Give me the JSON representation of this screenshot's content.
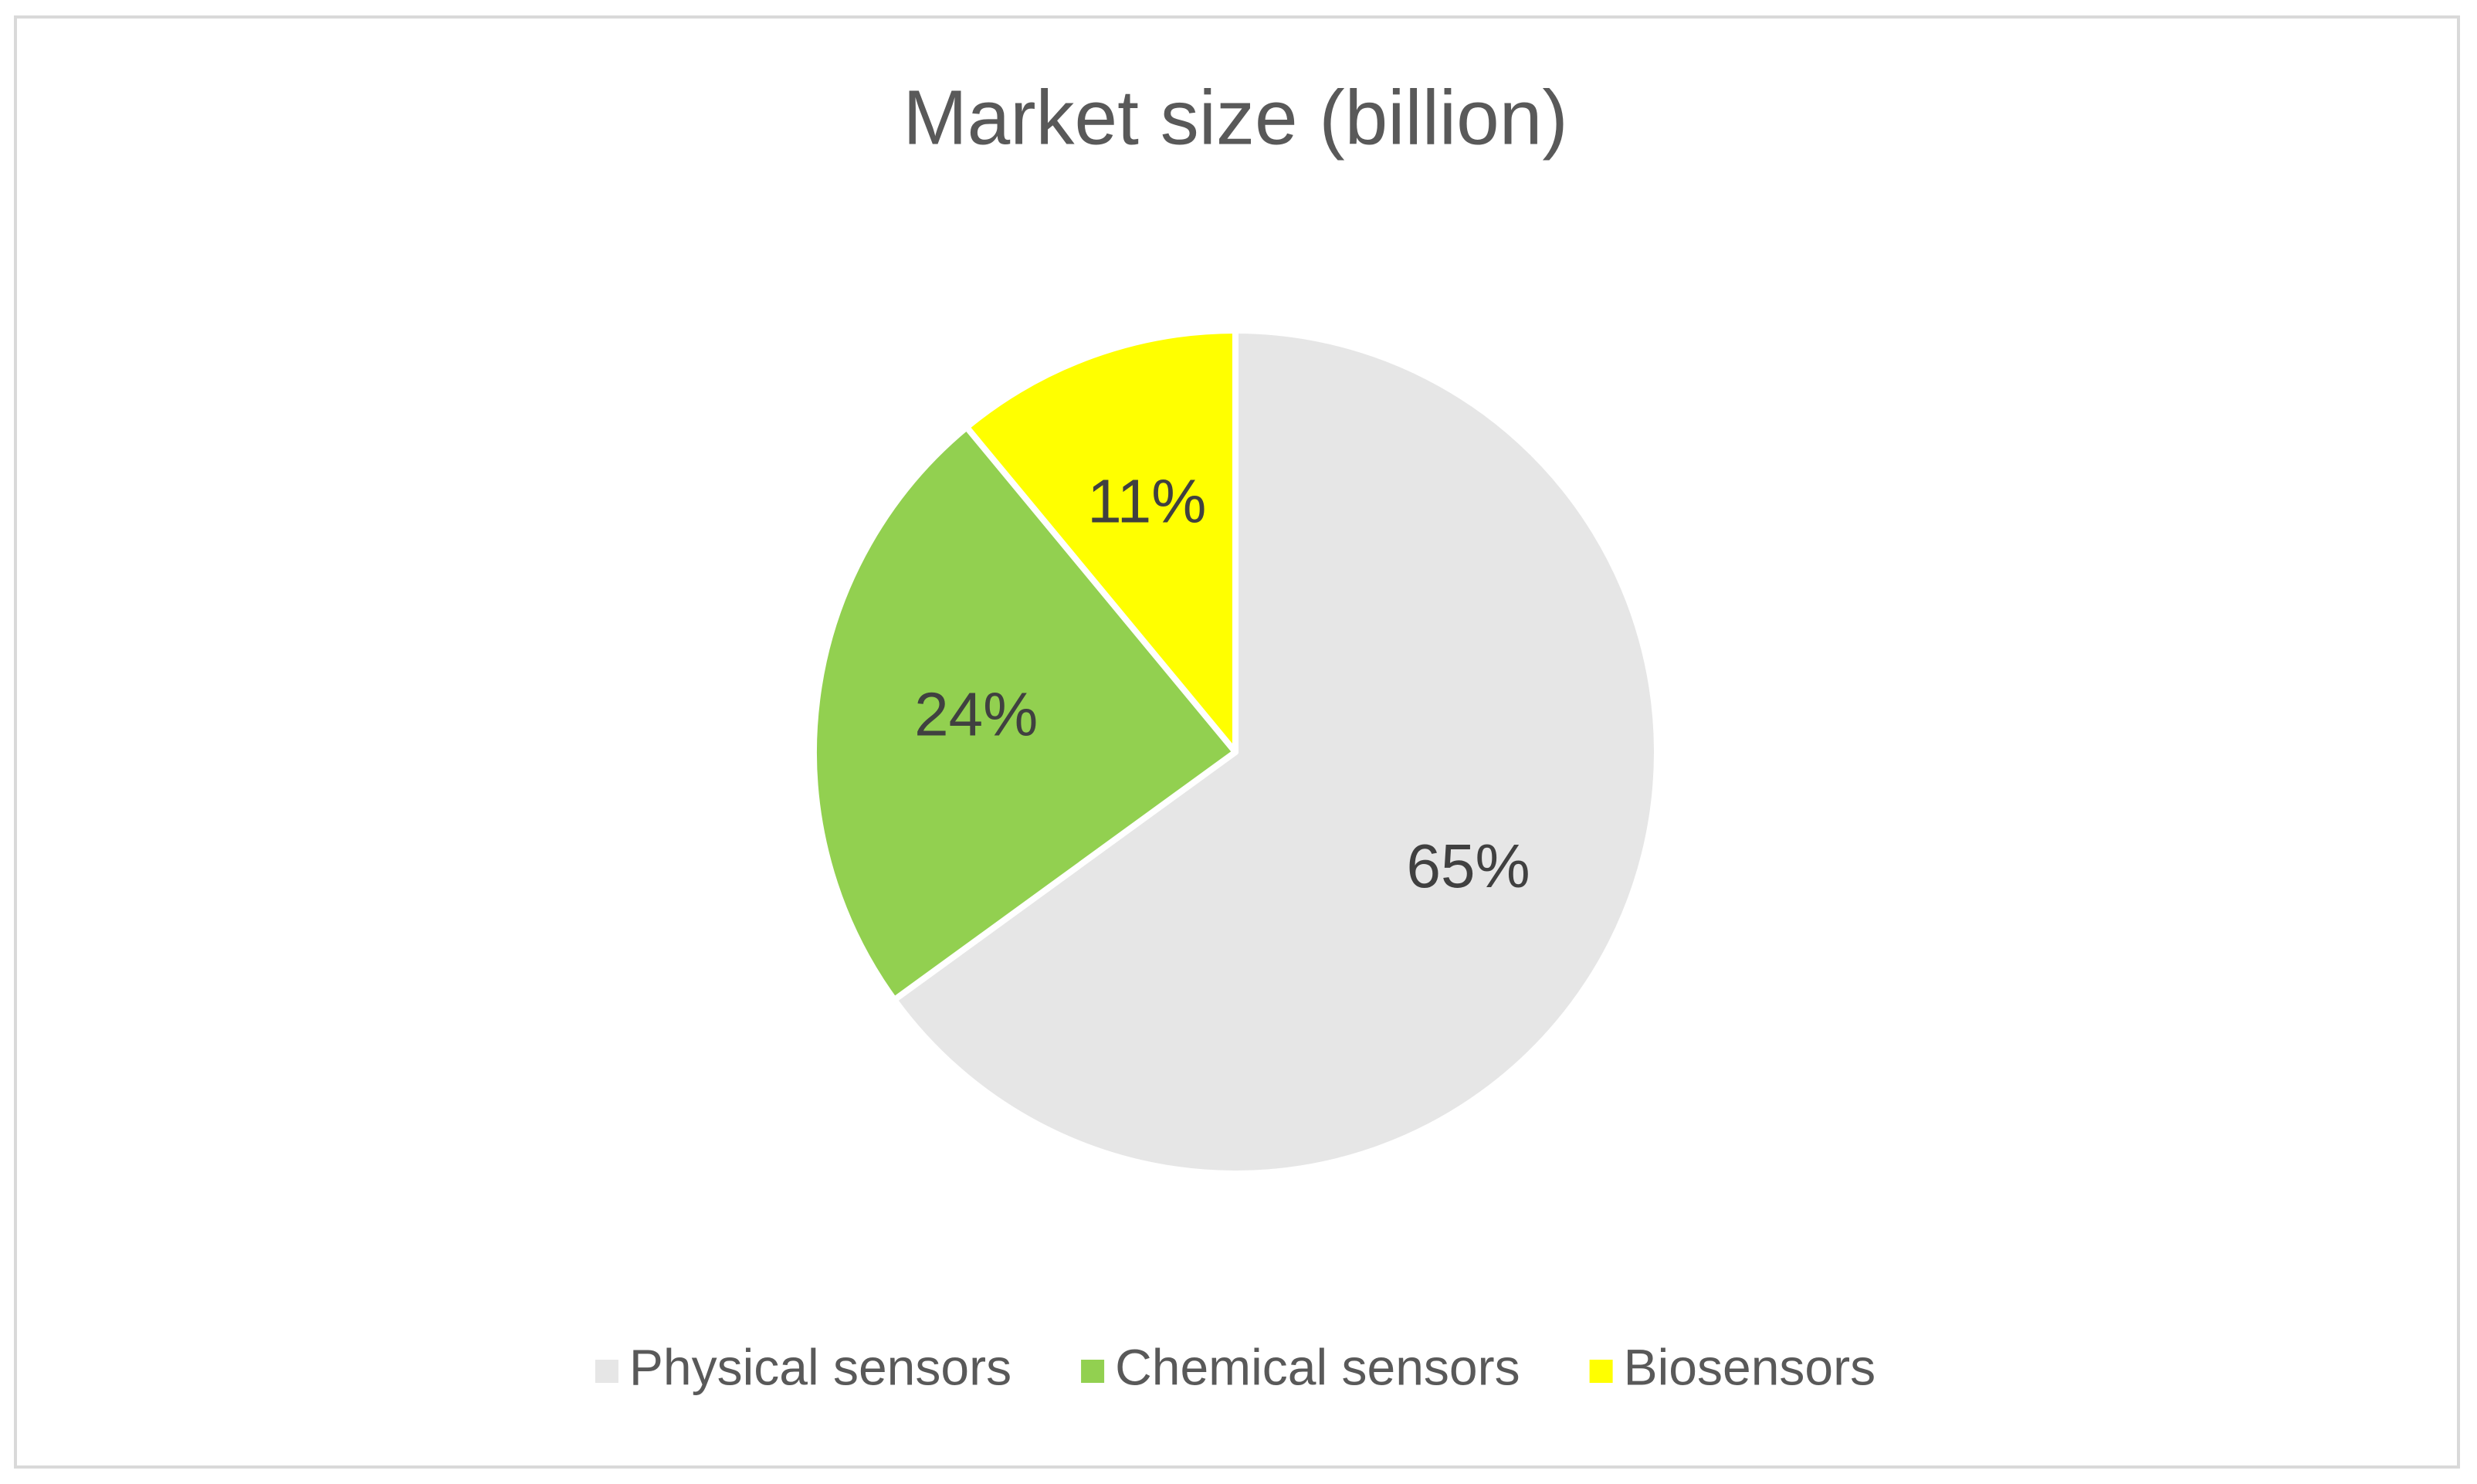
{
  "chart_data": {
    "type": "pie",
    "title": "Market size (billion)",
    "categories": [
      "Physical sensors",
      "Chemical sensors",
      "Biosensors"
    ],
    "values": [
      65,
      24,
      11
    ],
    "value_labels": [
      "65%",
      "24%",
      "11%"
    ],
    "colors": [
      "#e6e6e6",
      "#92d050",
      "#ffff00"
    ],
    "legend": "bottom"
  }
}
